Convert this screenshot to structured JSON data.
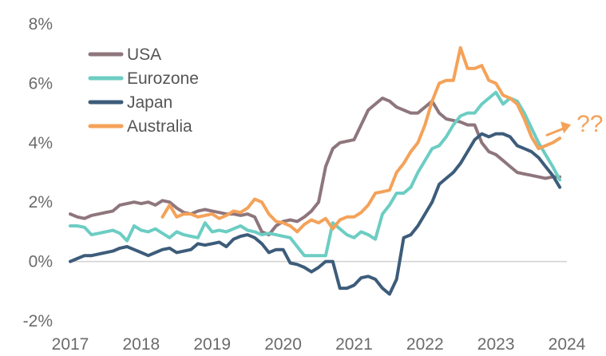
{
  "chart_data": {
    "type": "line",
    "title": "",
    "xlabel": "",
    "ylabel": "",
    "x_ticks": [
      "2017",
      "2018",
      "2019",
      "2020",
      "2021",
      "2022",
      "2023",
      "2024"
    ],
    "y_ticks": [
      "8%",
      "6%",
      "4%",
      "2%",
      "0%",
      "-2%"
    ],
    "y_tick_values": [
      8,
      6,
      4,
      2,
      0,
      -2
    ],
    "xlim": [
      2017,
      2024
    ],
    "ylim": [
      -2,
      8
    ],
    "grid": false,
    "legend_position": "top-left",
    "annotation": {
      "text": "??",
      "color": "#F4A259"
    },
    "series": [
      {
        "name": "USA",
        "color": "#8E767C",
        "x": [
          2017.0,
          2017.1,
          2017.2,
          2017.3,
          2017.4,
          2017.5,
          2017.6,
          2017.7,
          2017.8,
          2017.9,
          2018.0,
          2018.1,
          2018.2,
          2018.3,
          2018.4,
          2018.5,
          2018.6,
          2018.7,
          2018.8,
          2018.9,
          2019.0,
          2019.1,
          2019.2,
          2019.3,
          2019.4,
          2019.5,
          2019.6,
          2019.7,
          2019.8,
          2019.9,
          2020.0,
          2020.1,
          2020.2,
          2020.3,
          2020.4,
          2020.5,
          2020.6,
          2020.7,
          2020.8,
          2020.9,
          2021.0,
          2021.1,
          2021.2,
          2021.3,
          2021.4,
          2021.5,
          2021.6,
          2021.7,
          2021.8,
          2021.9,
          2022.0,
          2022.1,
          2022.2,
          2022.3,
          2022.4,
          2022.5,
          2022.6,
          2022.7,
          2022.8,
          2022.9,
          2023.0,
          2023.1,
          2023.2,
          2023.3,
          2023.4,
          2023.5,
          2023.6,
          2023.7,
          2023.8,
          2023.9
        ],
        "values": [
          1.6,
          1.5,
          1.45,
          1.55,
          1.6,
          1.65,
          1.7,
          1.9,
          1.95,
          2.0,
          1.95,
          2.0,
          1.9,
          2.05,
          2.0,
          1.8,
          1.65,
          1.6,
          1.7,
          1.75,
          1.7,
          1.65,
          1.6,
          1.6,
          1.55,
          1.6,
          1.5,
          1.0,
          0.9,
          1.2,
          1.35,
          1.4,
          1.35,
          1.5,
          1.7,
          2.0,
          3.2,
          3.8,
          4.0,
          4.05,
          4.1,
          4.6,
          5.1,
          5.3,
          5.5,
          5.4,
          5.2,
          5.1,
          5.0,
          5.0,
          5.2,
          5.4,
          5.0,
          4.8,
          4.75,
          4.7,
          4.6,
          4.6,
          4.0,
          3.7,
          3.6,
          3.4,
          3.2,
          3.0,
          2.95,
          2.9,
          2.85,
          2.8,
          2.85,
          2.85
        ]
      },
      {
        "name": "Eurozone",
        "color": "#6CCDC3",
        "x": [
          2017.0,
          2017.1,
          2017.2,
          2017.3,
          2017.4,
          2017.5,
          2017.6,
          2017.7,
          2017.8,
          2017.9,
          2018.0,
          2018.1,
          2018.2,
          2018.3,
          2018.4,
          2018.5,
          2018.6,
          2018.7,
          2018.8,
          2018.9,
          2019.0,
          2019.1,
          2019.2,
          2019.3,
          2019.4,
          2019.5,
          2019.6,
          2019.7,
          2019.8,
          2019.9,
          2020.0,
          2020.1,
          2020.2,
          2020.3,
          2020.4,
          2020.5,
          2020.6,
          2020.7,
          2020.8,
          2020.9,
          2021.0,
          2021.1,
          2021.2,
          2021.3,
          2021.4,
          2021.5,
          2021.6,
          2021.7,
          2021.8,
          2021.9,
          2022.0,
          2022.1,
          2022.2,
          2022.3,
          2022.4,
          2022.5,
          2022.6,
          2022.7,
          2022.8,
          2022.9,
          2023.0,
          2023.1,
          2023.2,
          2023.3,
          2023.4,
          2023.5,
          2023.6,
          2023.7,
          2023.8,
          2023.9
        ],
        "values": [
          1.2,
          1.2,
          1.15,
          0.9,
          0.95,
          1.0,
          1.05,
          0.95,
          0.7,
          1.2,
          1.05,
          1.0,
          1.1,
          0.95,
          0.8,
          1.0,
          0.9,
          0.85,
          0.8,
          1.3,
          1.0,
          1.05,
          1.0,
          1.1,
          1.2,
          1.05,
          1.0,
          0.9,
          0.95,
          0.9,
          0.85,
          0.8,
          0.5,
          0.2,
          0.2,
          0.2,
          0.2,
          1.3,
          1.1,
          0.9,
          0.8,
          1.0,
          0.9,
          0.75,
          1.6,
          1.9,
          2.3,
          2.3,
          2.5,
          3.0,
          3.4,
          3.8,
          3.9,
          4.2,
          4.6,
          4.9,
          5.0,
          5.0,
          5.3,
          5.5,
          5.7,
          5.3,
          5.5,
          5.4,
          5.0,
          4.5,
          4.0,
          3.6,
          3.2,
          2.75
        ]
      },
      {
        "name": "Japan",
        "color": "#3D5C7A",
        "x": [
          2017.0,
          2017.1,
          2017.2,
          2017.3,
          2017.4,
          2017.5,
          2017.6,
          2017.7,
          2017.8,
          2017.9,
          2018.0,
          2018.1,
          2018.2,
          2018.3,
          2018.4,
          2018.5,
          2018.6,
          2018.7,
          2018.8,
          2018.9,
          2019.0,
          2019.1,
          2019.2,
          2019.3,
          2019.4,
          2019.5,
          2019.6,
          2019.7,
          2019.8,
          2019.9,
          2020.0,
          2020.1,
          2020.2,
          2020.3,
          2020.4,
          2020.5,
          2020.6,
          2020.7,
          2020.8,
          2020.9,
          2021.0,
          2021.1,
          2021.2,
          2021.3,
          2021.4,
          2021.5,
          2021.6,
          2021.7,
          2021.8,
          2021.9,
          2022.0,
          2022.1,
          2022.2,
          2022.3,
          2022.4,
          2022.5,
          2022.6,
          2022.7,
          2022.8,
          2022.9,
          2023.0,
          2023.1,
          2023.2,
          2023.3,
          2023.4,
          2023.5,
          2023.6,
          2023.7,
          2023.8,
          2023.9
        ],
        "values": [
          0.0,
          0.1,
          0.2,
          0.2,
          0.25,
          0.3,
          0.35,
          0.45,
          0.5,
          0.4,
          0.3,
          0.2,
          0.3,
          0.4,
          0.45,
          0.3,
          0.35,
          0.4,
          0.6,
          0.55,
          0.6,
          0.65,
          0.5,
          0.75,
          0.85,
          0.9,
          0.8,
          0.6,
          0.3,
          0.4,
          0.4,
          -0.05,
          -0.1,
          -0.2,
          -0.35,
          -0.2,
          0.0,
          0.0,
          -0.9,
          -0.9,
          -0.8,
          -0.55,
          -0.5,
          -0.6,
          -0.9,
          -1.1,
          -0.6,
          0.8,
          0.9,
          1.2,
          1.6,
          2.0,
          2.6,
          2.8,
          3.0,
          3.3,
          3.7,
          4.1,
          4.3,
          4.2,
          4.3,
          4.3,
          4.2,
          3.9,
          3.8,
          3.7,
          3.5,
          3.2,
          2.9,
          2.5
        ]
      },
      {
        "name": "Australia",
        "color": "#F4A259",
        "x": [
          2018.3,
          2018.4,
          2018.5,
          2018.6,
          2018.7,
          2018.8,
          2018.9,
          2019.0,
          2019.1,
          2019.2,
          2019.3,
          2019.4,
          2019.5,
          2019.6,
          2019.7,
          2019.8,
          2019.9,
          2020.0,
          2020.1,
          2020.2,
          2020.3,
          2020.4,
          2020.5,
          2020.6,
          2020.7,
          2020.8,
          2020.9,
          2021.0,
          2021.1,
          2021.2,
          2021.3,
          2021.4,
          2021.5,
          2021.6,
          2021.7,
          2021.8,
          2021.9,
          2022.0,
          2022.1,
          2022.2,
          2022.3,
          2022.4,
          2022.5,
          2022.6,
          2022.7,
          2022.8,
          2022.9,
          2023.0,
          2023.1,
          2023.2,
          2023.3,
          2023.4,
          2023.5,
          2023.6,
          2023.7,
          2023.8,
          2023.9
        ],
        "values": [
          1.5,
          1.9,
          1.5,
          1.6,
          1.6,
          1.5,
          1.55,
          1.6,
          1.45,
          1.55,
          1.7,
          1.65,
          1.8,
          2.1,
          2.0,
          1.6,
          1.35,
          1.3,
          1.2,
          1.0,
          1.25,
          1.4,
          1.3,
          1.45,
          1.1,
          1.4,
          1.5,
          1.5,
          1.65,
          1.9,
          2.3,
          2.35,
          2.4,
          3.0,
          3.3,
          3.7,
          4.0,
          4.6,
          5.4,
          6.0,
          6.1,
          6.1,
          7.2,
          6.5,
          6.5,
          6.6,
          6.1,
          6.0,
          5.6,
          5.5,
          5.3,
          4.8,
          4.2,
          3.8,
          3.9,
          4.0,
          4.15
        ]
      }
    ]
  }
}
